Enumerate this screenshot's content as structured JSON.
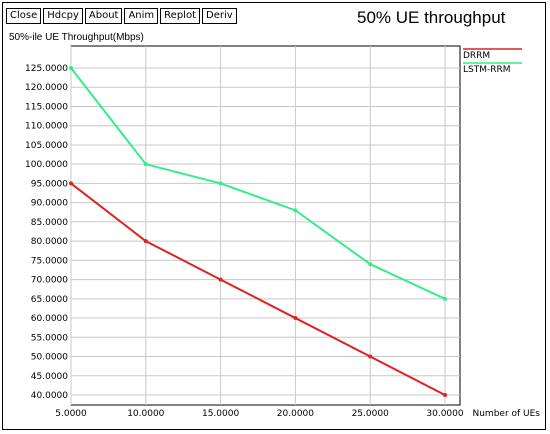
{
  "toolbar": {
    "buttons": [
      "Close",
      "Hdcpy",
      "About",
      "Anim",
      "Replot",
      "Deriv"
    ]
  },
  "chart_data": {
    "type": "line",
    "title": "50% UE throughput",
    "ylabel": "50%-ile UE Throughput(Mbps)",
    "xlabel": "Number of UEs",
    "x": [
      5,
      10,
      15,
      20,
      25,
      30
    ],
    "x_tick_labels": [
      "5.0000",
      "10.0000",
      "15.0000",
      "20.0000",
      "25.0000",
      "30.0000"
    ],
    "y_tick_values": [
      40,
      45,
      50,
      55,
      60,
      65,
      70,
      75,
      80,
      85,
      90,
      95,
      100,
      105,
      110,
      115,
      120,
      125
    ],
    "y_tick_labels": [
      "40.0000",
      "45.0000",
      "50.0000",
      "55.0000",
      "60.0000",
      "65.0000",
      "70.0000",
      "75.0000",
      "80.0000",
      "85.0000",
      "90.0000",
      "95.0000",
      "100.0000",
      "105.0000",
      "110.0000",
      "115.0000",
      "120.0000",
      "125.0000"
    ],
    "xlim": [
      5,
      30
    ],
    "ylim": [
      40,
      125
    ],
    "grid": true,
    "legend_position": "top-right",
    "series": [
      {
        "name": "DRRM",
        "color": "#dd2222",
        "values": [
          95,
          80,
          70,
          60,
          50,
          40
        ]
      },
      {
        "name": "LSTM-RRM",
        "color": "#33ee88",
        "values": [
          125,
          100,
          95,
          88,
          74,
          65
        ]
      }
    ]
  }
}
